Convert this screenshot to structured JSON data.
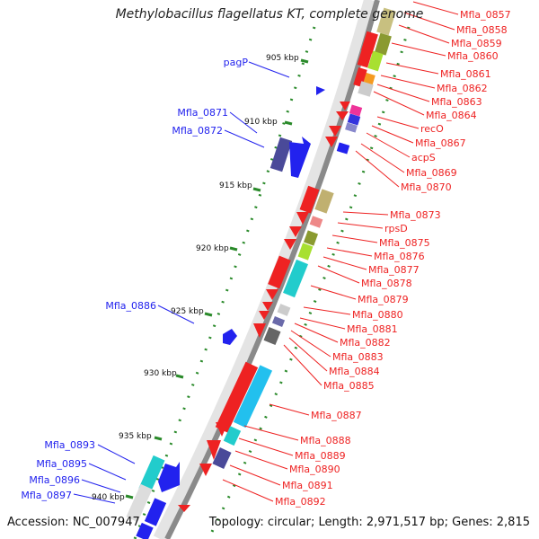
{
  "title": "Methylobacillus flagellatus KT, complete genome",
  "footer": {
    "accession": "Accession: NC_007947",
    "topology": "Topology: circular; Length: 2,971,517 bp; Genes: 2,815"
  },
  "ticks": [
    "905 kbp",
    "910 kbp",
    "915 kbp",
    "920 kbp",
    "925 kbp",
    "930 kbp",
    "935 kbp",
    "940 kbp"
  ],
  "left_labels": [
    "pagP",
    "Mfla_0871",
    "Mfla_0872",
    "Mfla_0886",
    "Mfla_0893",
    "Mfla_0895",
    "Mfla_0896",
    "Mfla_0897"
  ],
  "right_labels": [
    "Mfla_0857",
    "Mfla_0858",
    "Mfla_0859",
    "Mfla_0860",
    "Mfla_0861",
    "Mfla_0862",
    "Mfla_0863",
    "Mfla_0864",
    "recO",
    "Mfla_0867",
    "acpS",
    "Mfla_0869",
    "Mfla_0870",
    "Mfla_0873",
    "rpsD",
    "Mfla_0875",
    "Mfla_0876",
    "Mfla_0877",
    "Mfla_0878",
    "Mfla_0879",
    "Mfla_0880",
    "Mfla_0881",
    "Mfla_0882",
    "Mfla_0883",
    "Mfla_0884",
    "Mfla_0885",
    "Mfla_0887",
    "Mfla_0888",
    "Mfla_0889",
    "Mfla_0890",
    "Mfla_0891",
    "Mfla_0892"
  ],
  "colors": {
    "forward": "#2222ee",
    "reverse": "#ee2222",
    "backbone": "#888888",
    "tick": "#2a8a2a"
  }
}
